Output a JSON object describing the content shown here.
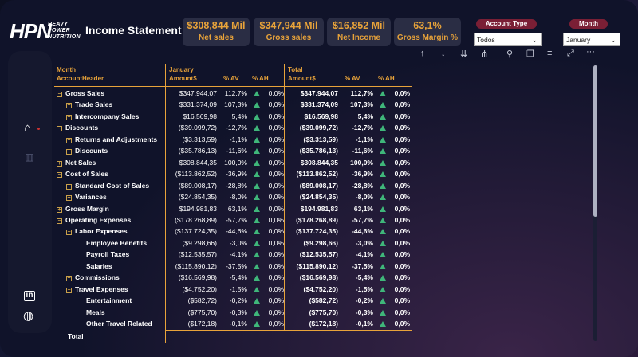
{
  "header": {
    "logo_big": "HPN",
    "logo_small_1": "HEAVY",
    "logo_small_2": "POWER",
    "logo_small_3": "NUTRITION",
    "title": "Income Statement"
  },
  "kpis": [
    {
      "value": "$308,844 Mil",
      "label": "Net sales"
    },
    {
      "value": "$347,944 Mil",
      "label": "Gross sales"
    },
    {
      "value": "$16,852 Mil",
      "label": "Net Income"
    },
    {
      "value": "63,1%",
      "label": "Gross Margin %"
    }
  ],
  "slicers": {
    "account_type_label": "Account Type",
    "account_type_value": "Todos",
    "month_label": "Month",
    "month_value": "January"
  },
  "nav": [
    {
      "icon": "home-icon",
      "glyph": "⌂"
    },
    {
      "icon": "chart-icon",
      "glyph": "▥"
    },
    {
      "icon": "linkedin-icon",
      "glyph": "in"
    },
    {
      "icon": "globe-icon",
      "glyph": "◍"
    }
  ],
  "toolbar": [
    {
      "icon": "drill-up-icon",
      "glyph": "↑"
    },
    {
      "icon": "drill-down-icon",
      "glyph": "↓"
    },
    {
      "icon": "expand-next-level-icon",
      "glyph": "⇊"
    },
    {
      "icon": "expand-hierarchy-icon",
      "glyph": "⋔"
    },
    {
      "icon": "pin-icon",
      "glyph": "⚲"
    },
    {
      "icon": "copy-icon",
      "glyph": "❐"
    },
    {
      "icon": "filter-icon",
      "glyph": "≡"
    },
    {
      "icon": "focus-mode-icon",
      "glyph": "⤢"
    },
    {
      "icon": "more-options-icon",
      "glyph": "···"
    }
  ],
  "matrix": {
    "headers": {
      "row1_col0": "Month",
      "row2_col0": "AccountHeader",
      "row1_col1": "January",
      "row2_col1": "Amount$",
      "row2_col2": "% AV",
      "row2_col3": "% AH",
      "row1_col4": "Total",
      "row2_col4": "Amount$",
      "row2_col5": "% AV",
      "row2_col6": "% AH"
    },
    "rows": [
      {
        "label": "Gross Sales",
        "level": 0,
        "toggle": "⊟",
        "amt": "$347.944,07",
        "av": "112,7%",
        "ah": "0,0%",
        "tamt": "$347.944,07",
        "tav": "112,7%",
        "tah": "0,0%"
      },
      {
        "label": "Trade Sales",
        "level": 1,
        "toggle": "⊞",
        "amt": "$331.374,09",
        "av": "107,3%",
        "ah": "0,0%",
        "tamt": "$331.374,09",
        "tav": "107,3%",
        "tah": "0,0%"
      },
      {
        "label": "Intercompany Sales",
        "level": 1,
        "toggle": "⊞",
        "amt": "$16.569,98",
        "av": "5,4%",
        "ah": "0,0%",
        "tamt": "$16.569,98",
        "tav": "5,4%",
        "tah": "0,0%"
      },
      {
        "label": "Discounts",
        "level": 0,
        "toggle": "⊟",
        "amt": "($39.099,72)",
        "av": "-12,7%",
        "ah": "0,0%",
        "tamt": "($39.099,72)",
        "tav": "-12,7%",
        "tah": "0,0%"
      },
      {
        "label": "Returns and Adjustments",
        "level": 1,
        "toggle": "⊞",
        "amt": "($3.313,59)",
        "av": "-1,1%",
        "ah": "0,0%",
        "tamt": "($3.313,59)",
        "tav": "-1,1%",
        "tah": "0,0%"
      },
      {
        "label": "Discounts",
        "level": 1,
        "toggle": "⊞",
        "amt": "($35.786,13)",
        "av": "-11,6%",
        "ah": "0,0%",
        "tamt": "($35.786,13)",
        "tav": "-11,6%",
        "tah": "0,0%"
      },
      {
        "label": "Net Sales",
        "level": 0,
        "toggle": "⊞",
        "amt": "$308.844,35",
        "av": "100,0%",
        "ah": "0,0%",
        "tamt": "$308.844,35",
        "tav": "100,0%",
        "tah": "0,0%"
      },
      {
        "label": "Cost of Sales",
        "level": 0,
        "toggle": "⊟",
        "amt": "($113.862,52)",
        "av": "-36,9%",
        "ah": "0,0%",
        "tamt": "($113.862,52)",
        "tav": "-36,9%",
        "tah": "0,0%"
      },
      {
        "label": "Standard Cost of Sales",
        "level": 1,
        "toggle": "⊞",
        "amt": "($89.008,17)",
        "av": "-28,8%",
        "ah": "0,0%",
        "tamt": "($89.008,17)",
        "tav": "-28,8%",
        "tah": "0,0%"
      },
      {
        "label": "Variances",
        "level": 1,
        "toggle": "⊞",
        "amt": "($24.854,35)",
        "av": "-8,0%",
        "ah": "0,0%",
        "tamt": "($24.854,35)",
        "tav": "-8,0%",
        "tah": "0,0%"
      },
      {
        "label": "Gross Margin",
        "level": 0,
        "toggle": "⊞",
        "amt": "$194.981,83",
        "av": "63,1%",
        "ah": "0,0%",
        "tamt": "$194.981,83",
        "tav": "63,1%",
        "tah": "0,0%"
      },
      {
        "label": "Operating Expenses",
        "level": 0,
        "toggle": "⊟",
        "amt": "($178.268,89)",
        "av": "-57,7%",
        "ah": "0,0%",
        "tamt": "($178.268,89)",
        "tav": "-57,7%",
        "tah": "0,0%"
      },
      {
        "label": "Labor Expenses",
        "level": 1,
        "toggle": "⊟",
        "amt": "($137.724,35)",
        "av": "-44,6%",
        "ah": "0,0%",
        "tamt": "($137.724,35)",
        "tav": "-44,6%",
        "tah": "0,0%"
      },
      {
        "label": "Employee Benefits",
        "level": 2,
        "toggle": "",
        "amt": "($9.298,66)",
        "av": "-3,0%",
        "ah": "0,0%",
        "tamt": "($9.298,66)",
        "tav": "-3,0%",
        "tah": "0,0%"
      },
      {
        "label": "Payroll Taxes",
        "level": 2,
        "toggle": "",
        "amt": "($12.535,57)",
        "av": "-4,1%",
        "ah": "0,0%",
        "tamt": "($12.535,57)",
        "tav": "-4,1%",
        "tah": "0,0%"
      },
      {
        "label": "Salaries",
        "level": 2,
        "toggle": "",
        "amt": "($115.890,12)",
        "av": "-37,5%",
        "ah": "0,0%",
        "tamt": "($115.890,12)",
        "tav": "-37,5%",
        "tah": "0,0%"
      },
      {
        "label": "Commissions",
        "level": 1,
        "toggle": "⊞",
        "amt": "($16.569,98)",
        "av": "-5,4%",
        "ah": "0,0%",
        "tamt": "($16.569,98)",
        "tav": "-5,4%",
        "tah": "0,0%"
      },
      {
        "label": "Travel Expenses",
        "level": 1,
        "toggle": "⊟",
        "amt": "($4.752,20)",
        "av": "-1,5%",
        "ah": "0,0%",
        "tamt": "($4.752,20)",
        "tav": "-1,5%",
        "tah": "0,0%"
      },
      {
        "label": "Entertainment",
        "level": 2,
        "toggle": "",
        "amt": "($582,72)",
        "av": "-0,2%",
        "ah": "0,0%",
        "tamt": "($582,72)",
        "tav": "-0,2%",
        "tah": "0,0%"
      },
      {
        "label": "Meals",
        "level": 2,
        "toggle": "",
        "amt": "($775,70)",
        "av": "-0,3%",
        "ah": "0,0%",
        "tamt": "($775,70)",
        "tav": "-0,3%",
        "tah": "0,0%"
      },
      {
        "label": "Other Travel Related",
        "level": 2,
        "toggle": "",
        "amt": "($172,18)",
        "av": "-0,1%",
        "ah": "0,0%",
        "tamt": "($172,18)",
        "tav": "-0,1%",
        "tah": "0,0%"
      }
    ],
    "total_label": "Total"
  },
  "colors": {
    "accent": "#e8a33a",
    "positive": "#3fb67a",
    "slicer_header": "#7a1f35"
  }
}
